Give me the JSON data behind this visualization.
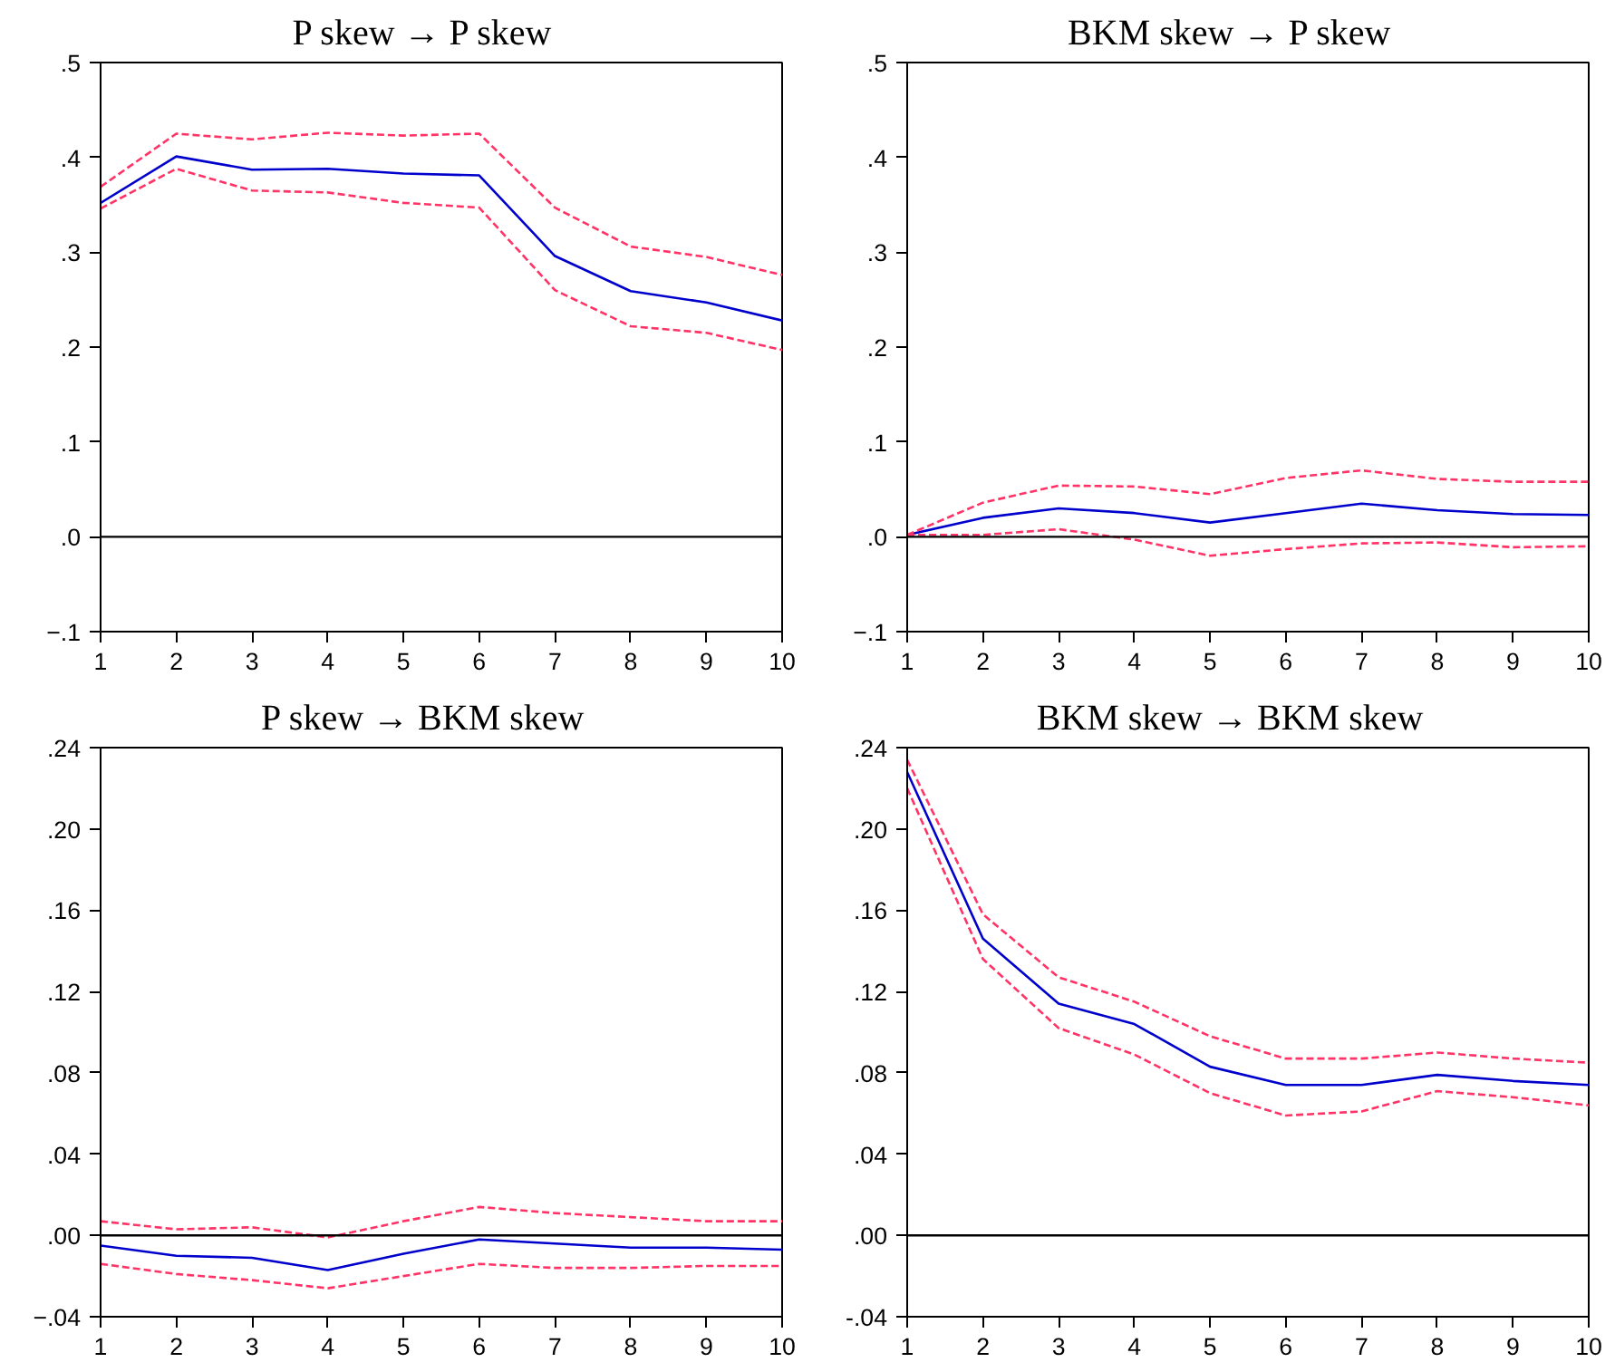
{
  "chart_data": [
    {
      "type": "line",
      "title": "P  skew  →  P  skew",
      "x": [
        1,
        2,
        3,
        4,
        5,
        6,
        7,
        8,
        9,
        10
      ],
      "xlim": [
        1,
        10
      ],
      "xticks": [
        1,
        2,
        3,
        4,
        5,
        6,
        7,
        8,
        9,
        10
      ],
      "ylim": [
        -0.1,
        0.5
      ],
      "yticks": [
        {
          "value": -0.1,
          "label": "−.1"
        },
        {
          "value": 0,
          "label": ".0"
        },
        {
          "value": 0.1,
          "label": ".1"
        },
        {
          "value": 0.2,
          "label": ".2"
        },
        {
          "value": 0.3,
          "label": ".3"
        },
        {
          "value": 0.4,
          "label": ".4"
        },
        {
          "value": 0.5,
          "label": ".5"
        }
      ],
      "grid": false,
      "ref_lines": [
        {
          "axis": "y",
          "value": 0,
          "color": "#000000"
        }
      ],
      "series": [
        {
          "color": "#0000cc",
          "line_style": "solid",
          "values": [
            0.352,
            0.401,
            0.387,
            0.388,
            0.383,
            0.381,
            0.296,
            0.259,
            0.247,
            0.228
          ]
        },
        {
          "color": "#ff3366",
          "line_style": "dashed",
          "values": [
            0.369,
            0.425,
            0.419,
            0.426,
            0.423,
            0.425,
            0.347,
            0.306,
            0.295,
            0.276
          ]
        },
        {
          "color": "#ff3366",
          "line_style": "dashed",
          "values": [
            0.346,
            0.388,
            0.365,
            0.363,
            0.352,
            0.347,
            0.26,
            0.222,
            0.215,
            0.197
          ]
        }
      ]
    },
    {
      "type": "line",
      "title": "BKM  skew  →  P  skew",
      "x": [
        1,
        2,
        3,
        4,
        5,
        6,
        7,
        8,
        9,
        10
      ],
      "xlim": [
        1,
        10
      ],
      "xticks": [
        1,
        2,
        3,
        4,
        5,
        6,
        7,
        8,
        9,
        10
      ],
      "ylim": [
        -0.1,
        0.5
      ],
      "yticks": [
        {
          "value": -0.1,
          "label": "−.1"
        },
        {
          "value": 0,
          "label": ".0"
        },
        {
          "value": 0.1,
          "label": ".1"
        },
        {
          "value": 0.2,
          "label": ".2"
        },
        {
          "value": 0.3,
          "label": ".3"
        },
        {
          "value": 0.4,
          "label": ".4"
        },
        {
          "value": 0.5,
          "label": ".5"
        }
      ],
      "grid": false,
      "ref_lines": [
        {
          "axis": "y",
          "value": 0,
          "color": "#000000"
        }
      ],
      "series": [
        {
          "color": "#0000cc",
          "line_style": "solid",
          "values": [
            0.002,
            0.02,
            0.03,
            0.025,
            0.015,
            0.025,
            0.035,
            0.028,
            0.024,
            0.023
          ]
        },
        {
          "color": "#ff3366",
          "line_style": "dashed",
          "values": [
            0.002,
            0.036,
            0.054,
            0.053,
            0.045,
            0.062,
            0.07,
            0.061,
            0.058,
            0.058
          ]
        },
        {
          "color": "#ff3366",
          "line_style": "dashed",
          "values": [
            0.002,
            0.002,
            0.008,
            -0.003,
            -0.02,
            -0.013,
            -0.007,
            -0.006,
            -0.011,
            -0.01
          ]
        }
      ]
    },
    {
      "type": "line",
      "title": "P  skew  →  BKM  skew",
      "x": [
        1,
        2,
        3,
        4,
        5,
        6,
        7,
        8,
        9,
        10
      ],
      "xlim": [
        1,
        10
      ],
      "xticks": [
        1,
        2,
        3,
        4,
        5,
        6,
        7,
        8,
        9,
        10
      ],
      "ylim": [
        -0.04,
        0.24
      ],
      "yticks": [
        {
          "value": -0.04,
          "label": "−.04"
        },
        {
          "value": 0,
          "label": ".00"
        },
        {
          "value": 0.04,
          "label": ".04"
        },
        {
          "value": 0.08,
          "label": ".08"
        },
        {
          "value": 0.12,
          "label": ".12"
        },
        {
          "value": 0.16,
          "label": ".16"
        },
        {
          "value": 0.2,
          "label": ".20"
        },
        {
          "value": 0.24,
          "label": ".24"
        }
      ],
      "grid": false,
      "ref_lines": [
        {
          "axis": "y",
          "value": 0,
          "color": "#000000"
        }
      ],
      "series": [
        {
          "color": "#0000cc",
          "line_style": "solid",
          "values": [
            -0.005,
            -0.01,
            -0.011,
            -0.017,
            -0.009,
            -0.002,
            -0.004,
            -0.006,
            -0.006,
            -0.007
          ]
        },
        {
          "color": "#ff3366",
          "line_style": "dashed",
          "values": [
            0.007,
            0.003,
            0.004,
            -0.001,
            0.007,
            0.014,
            0.011,
            0.009,
            0.007,
            0.007
          ]
        },
        {
          "color": "#ff3366",
          "line_style": "dashed",
          "values": [
            -0.014,
            -0.019,
            -0.022,
            -0.026,
            -0.02,
            -0.014,
            -0.016,
            -0.016,
            -0.015,
            -0.015
          ]
        }
      ]
    },
    {
      "type": "line",
      "title": "BKM  skew  →  BKM  skew",
      "x": [
        1,
        2,
        3,
        4,
        5,
        6,
        7,
        8,
        9,
        10
      ],
      "xlim": [
        1,
        10
      ],
      "xticks": [
        1,
        2,
        3,
        4,
        5,
        6,
        7,
        8,
        9,
        10
      ],
      "ylim": [
        -0.04,
        0.24
      ],
      "yticks": [
        {
          "value": -0.04,
          "label": "-.04"
        },
        {
          "value": 0,
          "label": ".00"
        },
        {
          "value": 0.04,
          "label": ".04"
        },
        {
          "value": 0.08,
          "label": ".08"
        },
        {
          "value": 0.12,
          "label": ".12"
        },
        {
          "value": 0.16,
          "label": ".16"
        },
        {
          "value": 0.2,
          "label": ".20"
        },
        {
          "value": 0.24,
          "label": ".24"
        }
      ],
      "grid": false,
      "ref_lines": [
        {
          "axis": "y",
          "value": 0,
          "color": "#000000"
        }
      ],
      "series": [
        {
          "color": "#0000cc",
          "line_style": "solid",
          "values": [
            0.228,
            0.146,
            0.114,
            0.104,
            0.083,
            0.074,
            0.074,
            0.079,
            0.076,
            0.074
          ]
        },
        {
          "color": "#ff3366",
          "line_style": "dashed",
          "values": [
            0.234,
            0.158,
            0.127,
            0.115,
            0.098,
            0.087,
            0.087,
            0.09,
            0.087,
            0.085
          ]
        },
        {
          "color": "#ff3366",
          "line_style": "dashed",
          "values": [
            0.22,
            0.136,
            0.102,
            0.089,
            0.07,
            0.059,
            0.061,
            0.071,
            0.068,
            0.064
          ]
        }
      ]
    }
  ]
}
